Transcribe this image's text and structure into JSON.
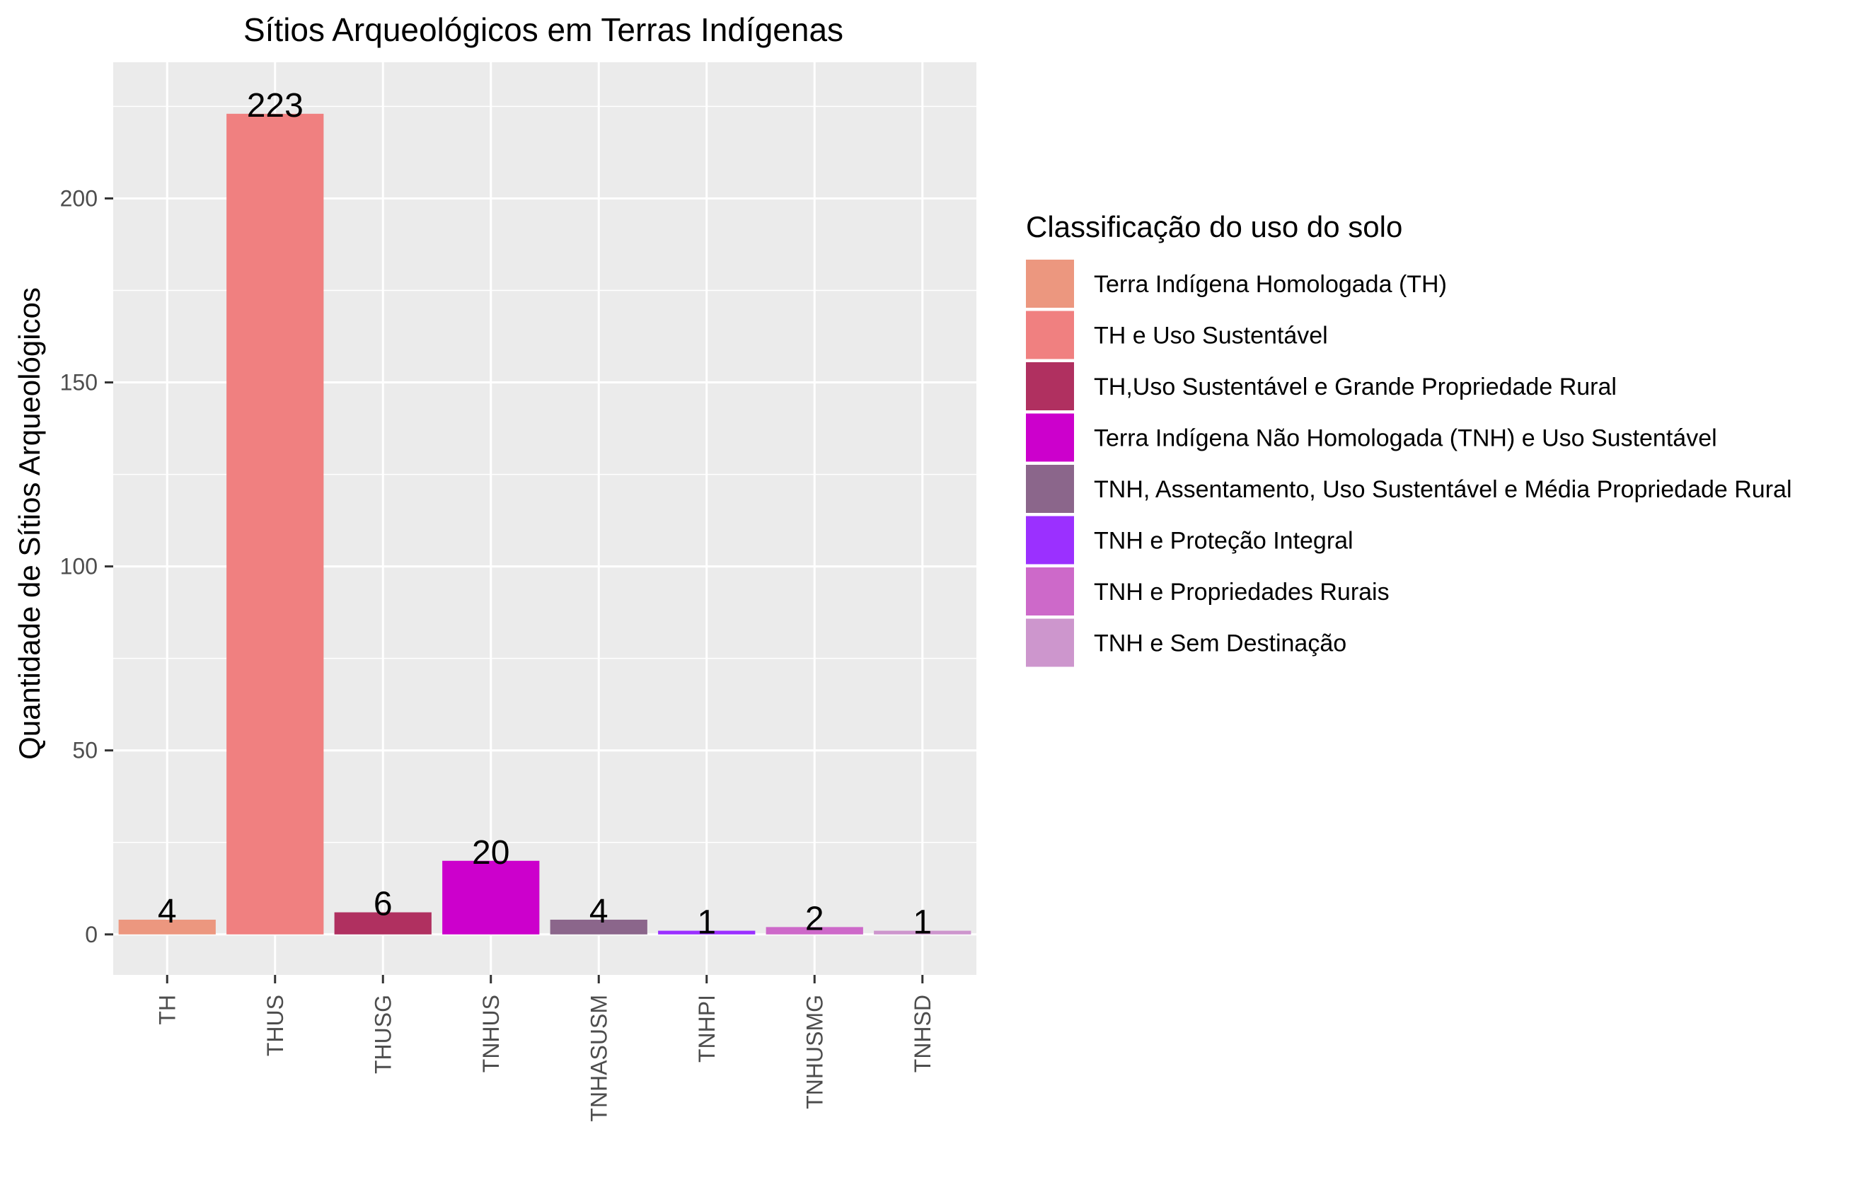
{
  "chart_data": {
    "type": "bar",
    "title": "Sítios Arqueológicos em Terras Indígenas",
    "xlabel": "",
    "ylabel": "Quantidade de Sítios Arqueológicos",
    "categories": [
      "TH",
      "THUS",
      "THUSG",
      "TNHUS",
      "TNHASUSM",
      "TNHPI",
      "TNHUSMG",
      "TNHSD"
    ],
    "values": [
      4,
      223,
      6,
      20,
      4,
      1,
      2,
      1
    ],
    "data_labels": [
      "4",
      "223",
      "6",
      "20",
      "4",
      "1",
      "2",
      "1"
    ],
    "colors": [
      "#EC977F",
      "#F08080",
      "#B03060",
      "#CC00CC",
      "#8B668B",
      "#9B30FF",
      "#CD69C9",
      "#CD96CD"
    ],
    "ylim": [
      -11,
      237
    ],
    "yticks": [
      0,
      50,
      100,
      150,
      200
    ],
    "ytick_labels": [
      "0",
      "50",
      "100",
      "150",
      "200"
    ],
    "grid": true,
    "panel_background": "#EBEBEB",
    "legend": {
      "title": "Classificação do uso do solo",
      "placement": "right",
      "entries": [
        "Terra Indígena Homologada (TH)",
        "TH e Uso Sustentável",
        "TH,Uso Sustentável e Grande Propriedade Rural",
        "Terra Indígena Não Homologada (TNH) e Uso Sustentável",
        "TNH, Assentamento, Uso Sustentável e Média Propriedade Rural",
        "TNH e Proteção Integral",
        "TNH e Propriedades Rurais",
        "TNH e Sem Destinação"
      ]
    }
  }
}
